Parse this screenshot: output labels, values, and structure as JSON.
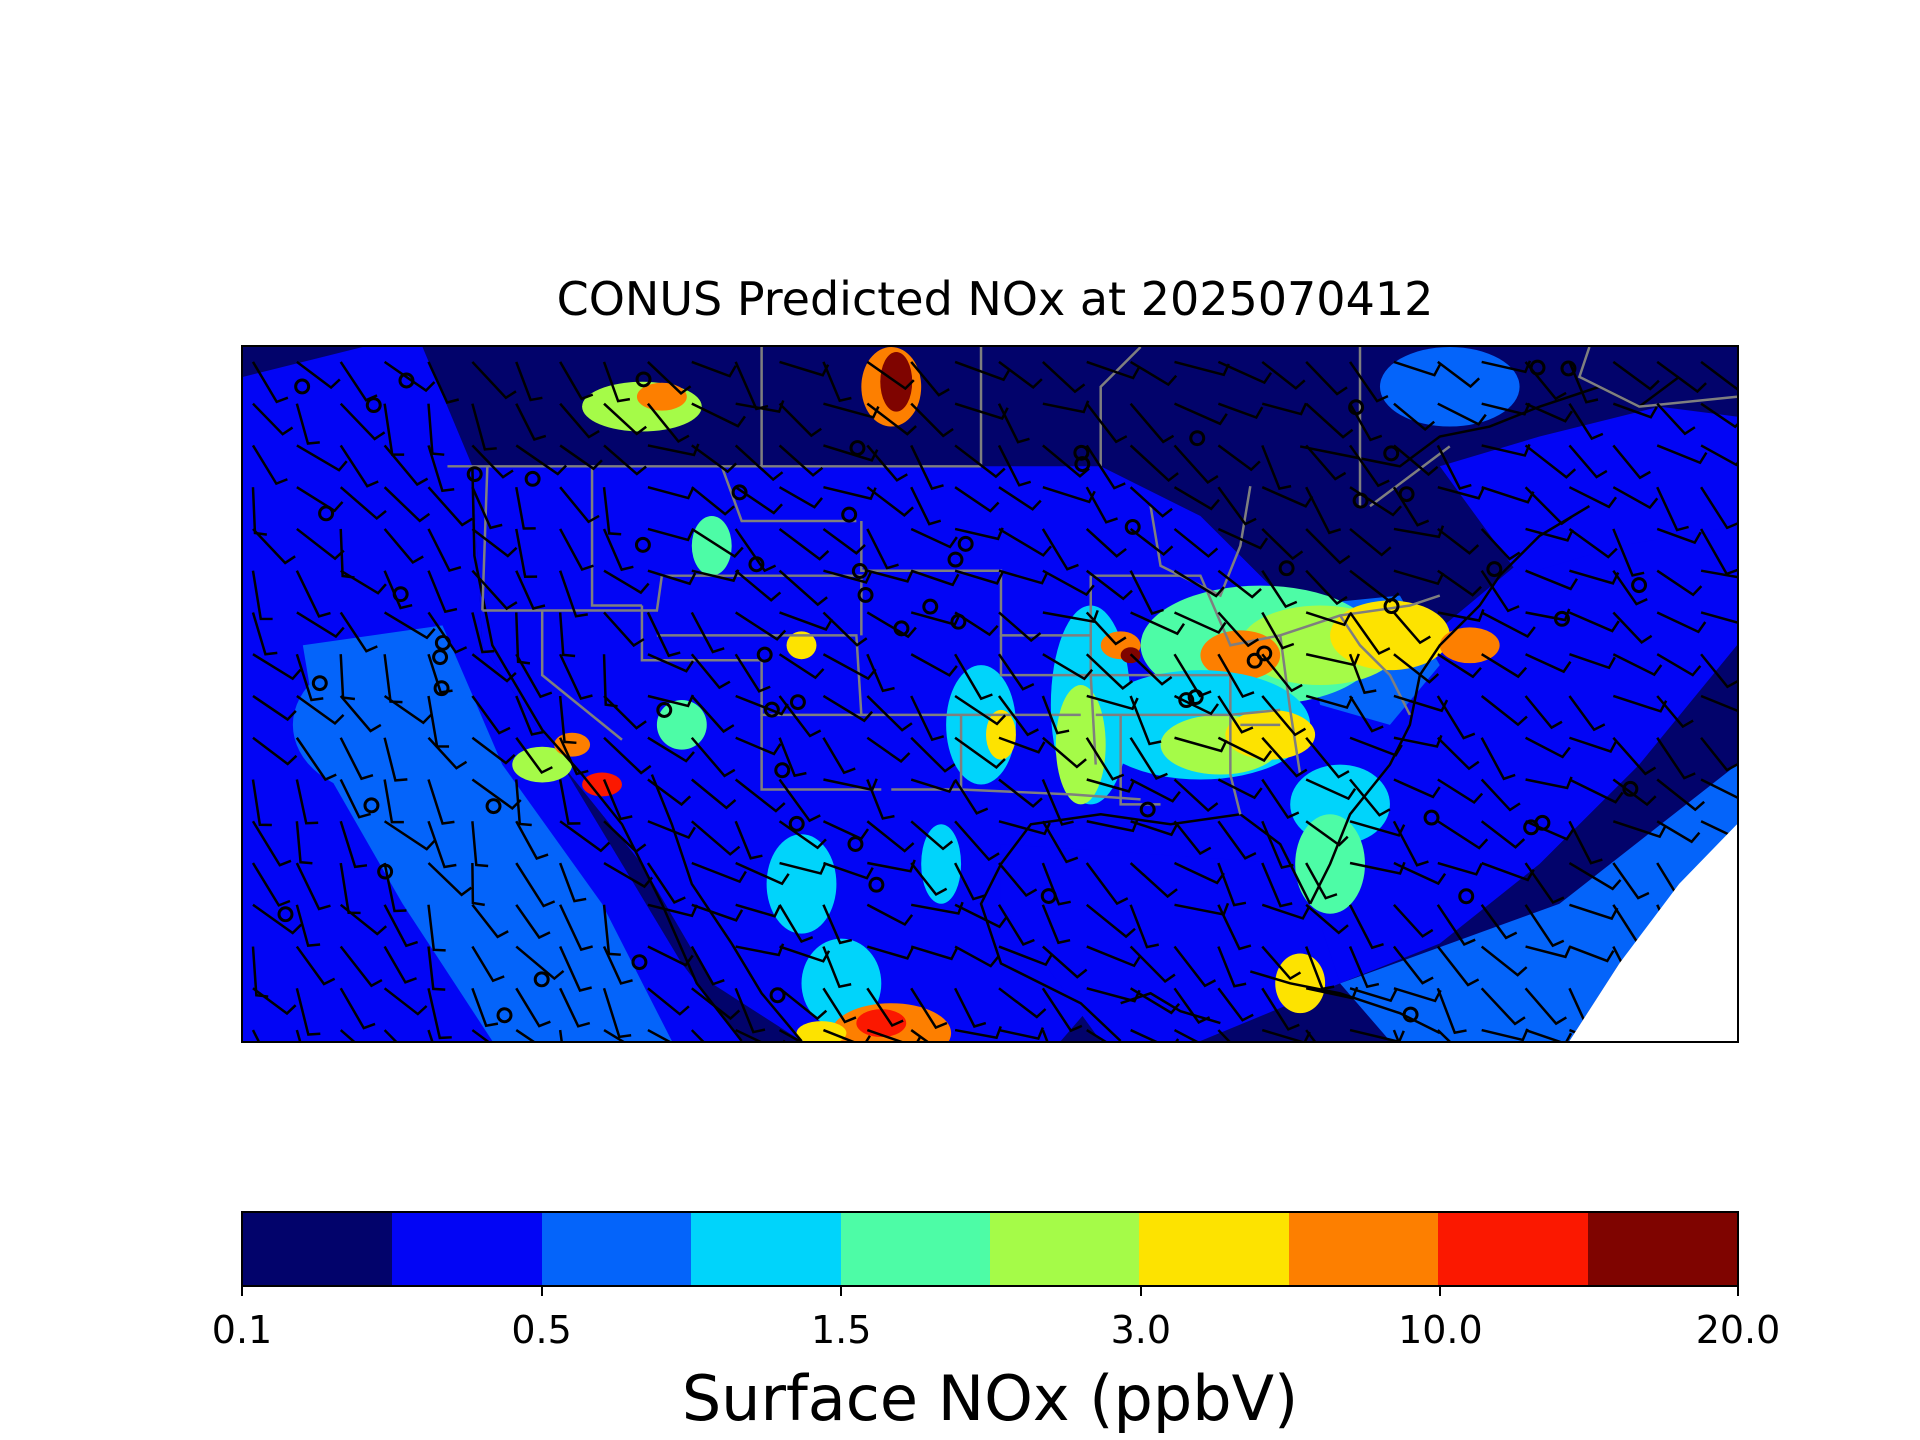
{
  "title": "CONUS Predicted NOx at 2025070412",
  "colorbar": {
    "label": "Surface NOx (ppbV)",
    "colors": [
      "#02036b",
      "#0205f5",
      "#0464fa",
      "#00d4fb",
      "#4dfca6",
      "#a5fb48",
      "#fde300",
      "#fd7f00",
      "#fb1800",
      "#7f0400"
    ],
    "tick_labels": [
      "0.1",
      "0.5",
      "1.5",
      "3.0",
      "10.0",
      "20.0"
    ],
    "tick_segment_index": [
      0,
      2,
      4,
      6,
      8,
      10
    ]
  },
  "map": {
    "field": "Surface NOx (ppbV)",
    "overlays": [
      "state-boundaries",
      "coastlines",
      "wind-barbs",
      "calm-wind-circles"
    ],
    "boundary_color": "#7f7f7f",
    "barb_color": "#000000"
  }
}
